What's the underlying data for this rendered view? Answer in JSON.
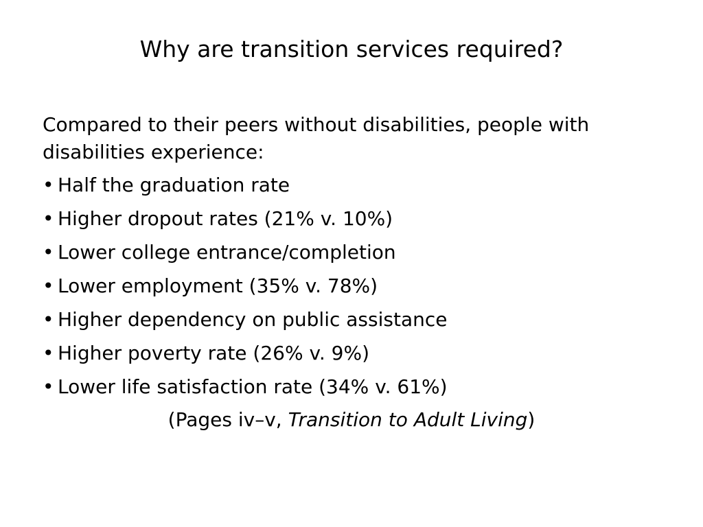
{
  "slide": {
    "title": "Why are transition services required?",
    "intro": "Compared to their peers without disabilities, people with disabilities experience:",
    "bullet_symbol": "•",
    "bullets": [
      "Half the graduation rate",
      "Higher dropout rates (21% v. 10%)",
      "Lower college entrance/completion",
      "Lower employment (35% v. 78%)",
      "Higher dependency on public assistance",
      "Higher poverty rate (26% v. 9%)",
      "Lower life satisfaction rate (34% v. 61%)"
    ],
    "citation": {
      "prefix": "(Pages iv–v, ",
      "source": "Transition to Adult Living",
      "suffix": ")"
    }
  }
}
